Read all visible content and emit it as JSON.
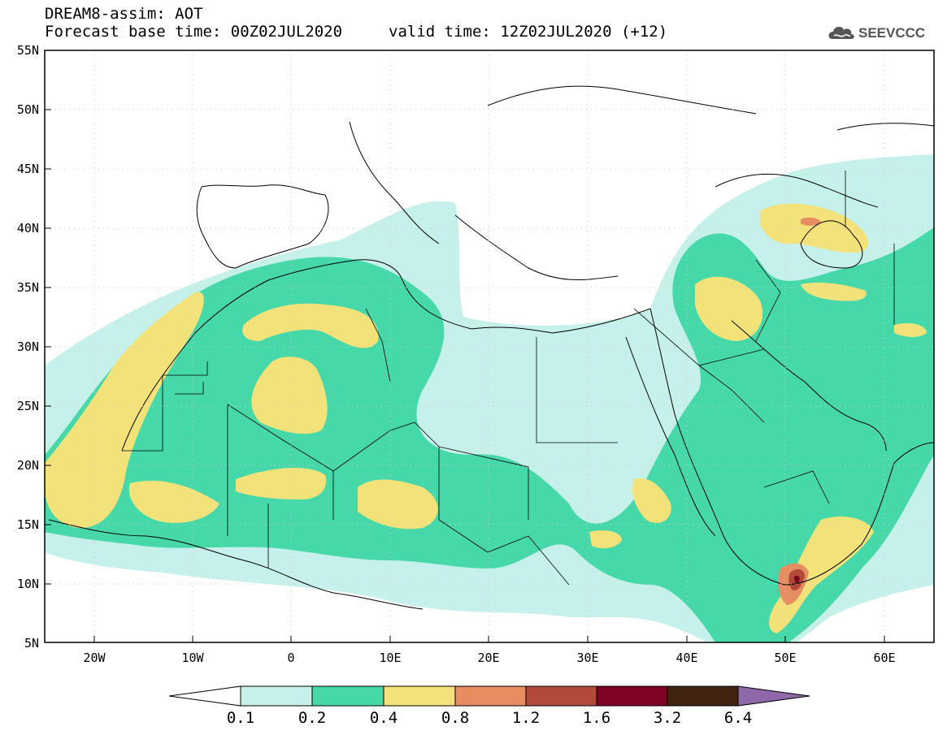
{
  "header": {
    "line1": "DREAM8-assim: AOT",
    "base_time_label": "Forecast base time: 00Z02JUL2020",
    "valid_time_label": "valid time: 12Z02JUL2020 (+12)"
  },
  "logo": {
    "text": "SEEVCCC",
    "icon": "cloud-icon"
  },
  "map": {
    "variable": "AOT",
    "lon_range": [
      -25,
      65
    ],
    "lat_range": [
      5,
      55
    ],
    "lat_ticks": [
      "55N",
      "50N",
      "45N",
      "40N",
      "35N",
      "30N",
      "25N",
      "20N",
      "15N",
      "10N",
      "5N"
    ],
    "lon_ticks": [
      "20W",
      "10W",
      "0",
      "10E",
      "20E",
      "30E",
      "40E",
      "50E",
      "60E"
    ]
  },
  "colorbar": {
    "levels": [
      "0.1",
      "0.2",
      "0.4",
      "0.8",
      "1.2",
      "1.6",
      "3.2",
      "6.4"
    ],
    "colors": [
      "#ffffff",
      "#c6f1ea",
      "#47d8a9",
      "#f3e279",
      "#e68d62",
      "#b14a38",
      "#7d0523",
      "#402410",
      "#8f68a9"
    ]
  },
  "colors": {
    "aot_0_1": "#c6f1ea",
    "aot_0_2": "#47d8a9",
    "aot_0_4": "#f3e279",
    "aot_0_8": "#e68d62",
    "aot_1_2": "#b14a38",
    "aot_1_6": "#7d0523"
  }
}
